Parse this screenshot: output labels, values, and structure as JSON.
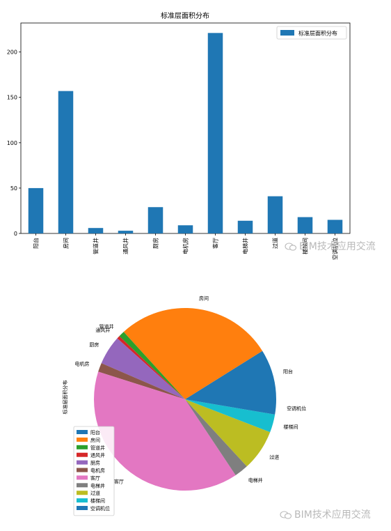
{
  "bar_chart": {
    "legend_label": "标准层面积分布"
  },
  "pie_chart": {
    "ylabel": "标准层面积分布"
  },
  "watermark": "BIM技术应用交流",
  "chart_data": [
    {
      "type": "bar",
      "title": "标准层面积分布",
      "xlabel": "",
      "ylabel": "",
      "categories": [
        "阳台",
        "房间",
        "管道井",
        "通风井",
        "厨房",
        "电机房",
        "客厅",
        "电梯井",
        "过道",
        "楼梯间",
        "空调机位"
      ],
      "series": [
        {
          "name": "标准层面积分布",
          "values": [
            50,
            157,
            6,
            3,
            29,
            9,
            221,
            14,
            41,
            18,
            15
          ]
        }
      ],
      "ylim": [
        0,
        232
      ],
      "yticks": [
        0,
        50,
        100,
        150,
        200
      ],
      "legend_position": "top-right",
      "grid": false,
      "color": "#1f77b4"
    },
    {
      "type": "pie",
      "title": "",
      "ylabel": "标准层面积分布",
      "labels": [
        "阳台",
        "房间",
        "管道井",
        "通风井",
        "厨房",
        "电机房",
        "客厅",
        "电梯井",
        "过道",
        "楼梯间",
        "空调机位"
      ],
      "values": [
        50,
        157,
        6,
        3,
        29,
        9,
        221,
        14,
        41,
        18,
        15
      ],
      "colors": [
        "#1f77b4",
        "#ff7f0e",
        "#2ca02c",
        "#d62728",
        "#9467bd",
        "#8c564b",
        "#e377c2",
        "#7f7f7f",
        "#bcbd22",
        "#17becf",
        "#1f77b4"
      ],
      "legend_position": "lower-left"
    }
  ]
}
